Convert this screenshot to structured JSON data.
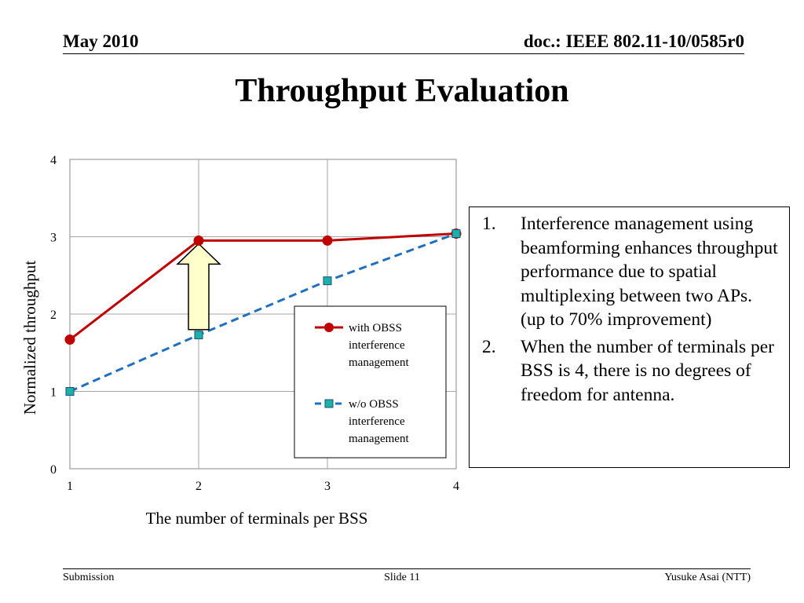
{
  "header": {
    "date": "May 2010",
    "doc_id": "doc.: IEEE 802.11-10/0585r0"
  },
  "title": "Throughput Evaluation",
  "chart_data": {
    "type": "line",
    "xlabel": "The number of terminals per BSS",
    "ylabel": "Normalized throughput",
    "x": [
      1,
      2,
      3,
      4
    ],
    "xlim": [
      1,
      4
    ],
    "ylim": [
      0,
      4
    ],
    "xticks": [
      "1",
      "2",
      "3",
      "4"
    ],
    "yticks": [
      "0",
      "1",
      "2",
      "3",
      "4"
    ],
    "grid": true,
    "legend_position": "bottom-right inside plot",
    "series": [
      {
        "name": "with OBSS interference management",
        "legend_lines": [
          "with OBSS",
          "interference",
          "management"
        ],
        "values": [
          1.67,
          2.95,
          2.95,
          3.04
        ],
        "color": "#c00000",
        "marker": "circle",
        "style": "solid"
      },
      {
        "name": "w/o OBSS interference management",
        "legend_lines": [
          "w/o OBSS",
          "interference",
          "management"
        ],
        "values": [
          1.0,
          1.73,
          2.43,
          3.04
        ],
        "color": "#1f6fbf",
        "marker_color": "#1ab2a8",
        "marker": "square",
        "style": "dashed"
      }
    ],
    "annotation": {
      "type": "up-arrow",
      "x": 2,
      "y_from": 1.8,
      "y_to": 2.95,
      "fill": "#ffffcc"
    }
  },
  "notes": [
    {
      "num": "1.",
      "text": "Interference management using beamforming enhances throughput performance due to spatial multiplexing between two APs. (up to 70% improvement)"
    },
    {
      "num": "2.",
      "text": "When the number of terminals per BSS is 4, there is no degrees of freedom for antenna."
    }
  ],
  "footer": {
    "left": "Submission",
    "center": "Slide 11",
    "right": "Yusuke Asai (NTT)"
  }
}
